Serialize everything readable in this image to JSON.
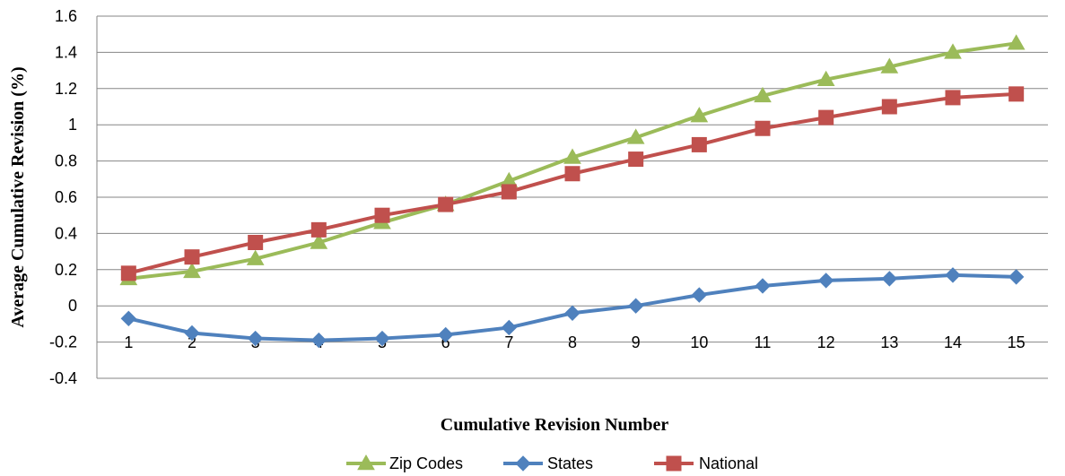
{
  "chart_data": {
    "type": "line",
    "title": "",
    "xlabel": "Cumulative Revision Number",
    "ylabel": "Average Cumulative Revision (%)",
    "categories": [
      "1",
      "2",
      "3",
      "4",
      "5",
      "6",
      "7",
      "8",
      "9",
      "10",
      "11",
      "12",
      "13",
      "14",
      "15"
    ],
    "ylim": [
      -0.4,
      1.6
    ],
    "yticks": [
      "-0.4",
      "-0.2",
      "0",
      "0.2",
      "0.4",
      "0.6",
      "0.8",
      "1",
      "1.2",
      "1.4",
      "1.6"
    ],
    "grid": true,
    "legend_position": "bottom",
    "series": [
      {
        "name": "Zip Codes",
        "color": "#9BBB59",
        "marker": "triangle",
        "values": [
          0.15,
          0.19,
          0.26,
          0.35,
          0.46,
          0.56,
          0.69,
          0.82,
          0.93,
          1.05,
          1.16,
          1.25,
          1.32,
          1.4,
          1.45
        ]
      },
      {
        "name": "States",
        "color": "#4F81BD",
        "marker": "diamond",
        "values": [
          -0.07,
          -0.15,
          -0.18,
          -0.19,
          -0.18,
          -0.16,
          -0.12,
          -0.04,
          0.0,
          0.06,
          0.11,
          0.14,
          0.15,
          0.17,
          0.16
        ]
      },
      {
        "name": "National",
        "color": "#C0504D",
        "marker": "square",
        "values": [
          0.18,
          0.27,
          0.35,
          0.42,
          0.5,
          0.56,
          0.63,
          0.73,
          0.81,
          0.89,
          0.98,
          1.04,
          1.1,
          1.15,
          1.17
        ]
      }
    ]
  }
}
